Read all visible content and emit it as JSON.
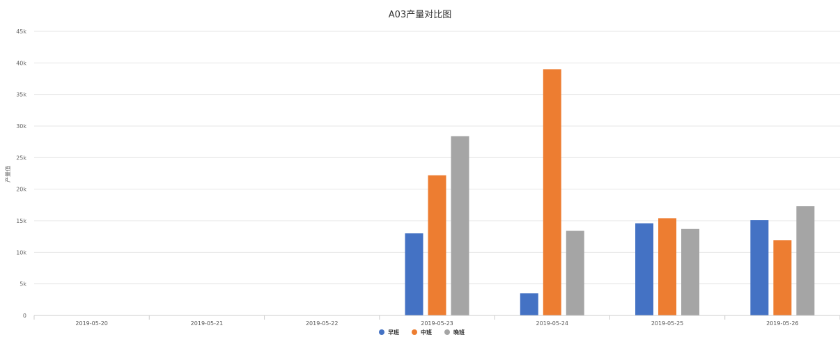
{
  "chart_data": {
    "type": "bar",
    "title": "A03产量对比图",
    "xlabel": "",
    "ylabel": "产量值",
    "ylim": [
      0,
      45000
    ],
    "yticks": [
      0,
      5000,
      10000,
      15000,
      20000,
      25000,
      30000,
      35000,
      40000,
      45000
    ],
    "ytick_labels": [
      "0",
      "5k",
      "10k",
      "15k",
      "20k",
      "25k",
      "30k",
      "35k",
      "40k",
      "45k"
    ],
    "categories": [
      "2019-05-20",
      "2019-05-21",
      "2019-05-22",
      "2019-05-23",
      "2019-05-24",
      "2019-05-25",
      "2019-05-26"
    ],
    "series": [
      {
        "name": "早班",
        "color": "#4472c4",
        "values": [
          0,
          0,
          0,
          13000,
          3500,
          14600,
          15100
        ]
      },
      {
        "name": "中班",
        "color": "#ed7d31",
        "values": [
          0,
          0,
          0,
          22200,
          39000,
          15400,
          11900
        ]
      },
      {
        "name": "晚班",
        "color": "#a5a5a5",
        "values": [
          0,
          0,
          0,
          28400,
          13400,
          13700,
          17300
        ]
      }
    ],
    "grid": true,
    "legend_position": "bottom-center"
  }
}
